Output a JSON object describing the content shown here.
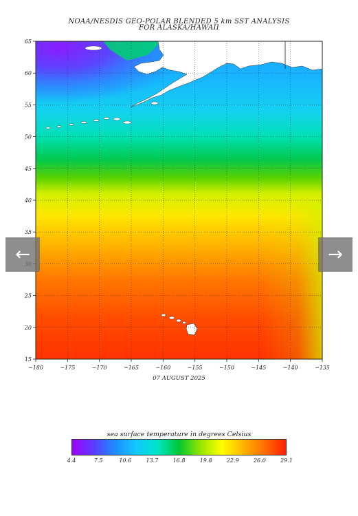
{
  "title": {
    "line1": "NOAA/NESDIS GEO-POLAR BLENDED 5 km SST ANALYSIS",
    "line2": "FOR ALASKA/HAWAII"
  },
  "date": "07 AUGUST 2025",
  "map": {
    "lon_range": [
      -180,
      -135
    ],
    "lat_range": [
      15,
      65
    ],
    "lon_ticks": [
      "-180",
      "-175",
      "-170",
      "-165",
      "-160",
      "-155",
      "-150",
      "-145",
      "-140",
      "-135"
    ],
    "lat_ticks": [
      "15",
      "20",
      "25",
      "30",
      "35",
      "40",
      "45",
      "50",
      "55",
      "60",
      "65"
    ],
    "grid": true,
    "land_color": "#ffffff"
  },
  "navigation": {
    "prev_icon": "arrow-left-icon",
    "next_icon": "arrow-right-icon",
    "prev_glyph": "←",
    "next_glyph": "→"
  },
  "colorbar": {
    "label": "sea surface temperature in degrees Celsius",
    "ticks": [
      "4.4",
      "7.5",
      "10.6",
      "13.7",
      "16.8",
      "19.8",
      "22.9",
      "26.0",
      "29.1"
    ],
    "range": [
      4.4,
      29.1
    ],
    "colors": [
      "#a000ff",
      "#5a3cff",
      "#1e8cff",
      "#12c8ff",
      "#00e6c8",
      "#00c832",
      "#96e600",
      "#ffff00",
      "#ffb400",
      "#ff6e00",
      "#ff1e00"
    ]
  }
}
